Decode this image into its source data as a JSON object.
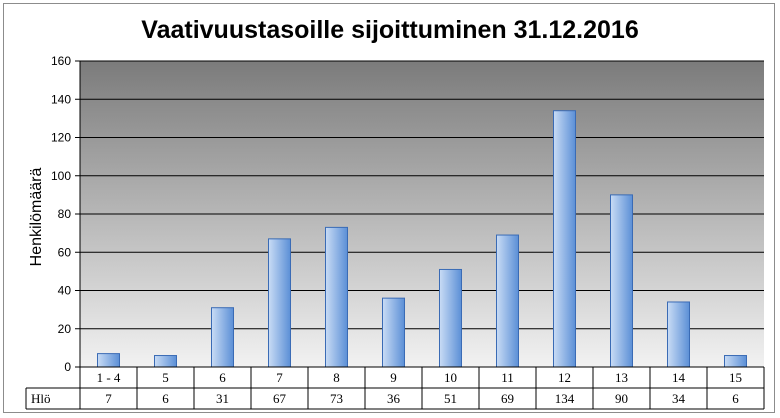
{
  "chart_data": {
    "type": "bar",
    "title": "Vaativuustasoille sijoittuminen 31.12.2016",
    "xlabel": "",
    "ylabel": "Henkilömäärä",
    "ylim": [
      0,
      160
    ],
    "ytick_step": 20,
    "grid": true,
    "legend": "none",
    "data_table": true,
    "categories": [
      "1 - 4",
      "5",
      "6",
      "7",
      "8",
      "9",
      "10",
      "11",
      "12",
      "13",
      "14",
      "15"
    ],
    "series": [
      {
        "name": "Hlö",
        "values": [
          7,
          6,
          31,
          67,
          73,
          36,
          51,
          69,
          134,
          90,
          34,
          6
        ]
      }
    ],
    "colors": {
      "plot_bg_top": "#7b7b7b",
      "plot_bg_bottom": "#f2f2f2",
      "bar_light": "#c9dcf5",
      "bar_dark": "#5b8fd6",
      "bar_edge": "#3a6bb5",
      "grid": "#000000"
    }
  }
}
